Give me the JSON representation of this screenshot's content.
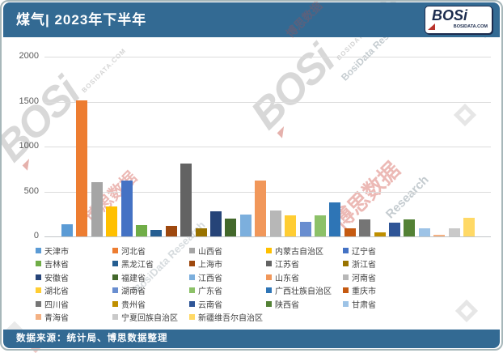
{
  "header": {
    "title": "煤气| 2023年下半年",
    "logo": {
      "brand": "BOSi",
      "domain": "BOSIDATA.COM"
    }
  },
  "footer": {
    "source": "数据来源：统计局、博思数据整理"
  },
  "colors": {
    "header_bg": "#336a93",
    "footer_bg": "#336a93",
    "frame_border": "#a7b7ba",
    "gridline": "#dcdcdc",
    "axis_line": "#c2c6c8",
    "tick_label": "#595959",
    "legend_text": "#3f3f3f"
  },
  "chart_data": {
    "type": "bar",
    "title": "煤气| 2023年下半年",
    "xlabel": "",
    "ylabel": "",
    "ylim": [
      0,
      2000
    ],
    "yticks": [
      0,
      500,
      1000,
      1500,
      2000
    ],
    "grid": true,
    "legend_position": "bottom",
    "categories": [
      "天津市",
      "河北省",
      "山西省",
      "内蒙古自治区",
      "辽宁省",
      "吉林省",
      "黑龙江省",
      "上海市",
      "江苏省",
      "浙江省",
      "安徽省",
      "福建省",
      "江西省",
      "山东省",
      "河南省",
      "湖北省",
      "湖南省",
      "广东省",
      "广西壮族自治区",
      "重庆市",
      "四川省",
      "贵州省",
      "云南省",
      "陕西省",
      "甘肃省",
      "青海省",
      "宁夏回族自治区",
      "新疆维吾尔自治区"
    ],
    "values": [
      135,
      1510,
      600,
      330,
      620,
      125,
      75,
      120,
      810,
      90,
      275,
      200,
      245,
      625,
      290,
      230,
      160,
      230,
      380,
      90,
      190,
      45,
      150,
      190,
      90,
      15,
      90,
      210
    ],
    "point_colors": [
      "#5B9BD5",
      "#ED7D31",
      "#A5A5A5",
      "#FFC000",
      "#4472C4",
      "#70AD47",
      "#255E91",
      "#9E480E",
      "#636363",
      "#997300",
      "#264478",
      "#43682B",
      "#7CAFDD",
      "#F1975A",
      "#B7B7B7",
      "#FFCD33",
      "#698ED0",
      "#8CC168",
      "#2E75B6",
      "#C55A11",
      "#757575",
      "#BF8F00",
      "#2F5597",
      "#538135",
      "#9DC3E6",
      "#F4B183",
      "#C9C9C9",
      "#FFD966"
    ]
  },
  "watermarks": {
    "brand": "BOSi",
    "domain": "BOSIDATA.COM",
    "cn": "博思数据",
    "en": "BosiData Research",
    "en_short": "Research"
  }
}
